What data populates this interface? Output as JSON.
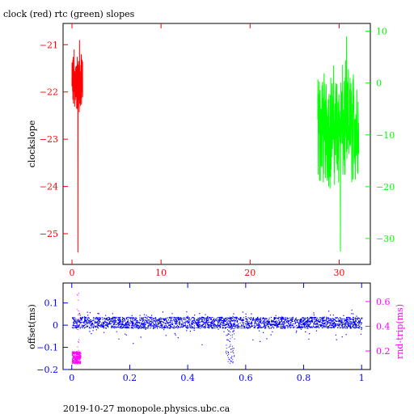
{
  "title": "clock (red) rtc (green) slopes",
  "footer": "2019-10-27  monopole.physics.ubc.ca",
  "colors": {
    "clock": "#ff0000",
    "rtc": "#00ff00",
    "offset": "#0000ff",
    "rndtrip": "#ff00ff",
    "axis": "#000000"
  },
  "chart_data": [
    {
      "type": "line",
      "title": "clock (red) rtc (green) slopes",
      "ylabel": "clockslope",
      "xlim": [
        -1,
        33.5
      ],
      "ylim": [
        -25.65,
        -20.55
      ],
      "y2lim": [
        -35,
        11.5
      ],
      "xticks": [
        0,
        10,
        20,
        30
      ],
      "yticks": [
        -21,
        -22,
        -23,
        -24,
        -25
      ],
      "y2ticks": [
        10,
        0,
        -10,
        -20,
        -30
      ],
      "series": [
        {
          "name": "clock",
          "axis": "left",
          "x_range": [
            0,
            1.2
          ],
          "y_center": -22.0,
          "y_range": [
            -25.4,
            -20.9
          ],
          "points": 120
        },
        {
          "name": "rtc",
          "axis": "right",
          "x_range": [
            27.6,
            32.2
          ],
          "y_center": -8.0,
          "y_range": [
            -32.5,
            9.0
          ],
          "points": 260
        }
      ]
    },
    {
      "type": "scatter",
      "ylabel": "offset(ms)",
      "y2label": "rnd-trip(ms)",
      "xlim": [
        -0.03,
        1.03
      ],
      "ylim": [
        -0.2,
        0.19
      ],
      "y2lim": [
        0.05,
        0.75
      ],
      "xticks": [
        "0",
        "0.2",
        "0.4",
        "0.6",
        "0.8",
        "1"
      ],
      "yticks": [
        "0.1",
        "0",
        "-0.1",
        "-0.2"
      ],
      "y2ticks": [
        "0.6",
        "0.4",
        "0.2"
      ],
      "series": [
        {
          "name": "offset",
          "axis": "left",
          "x_range": [
            0,
            1
          ],
          "y_band": [
            -0.012,
            0.038
          ],
          "dip_x": [
            0.53,
            0.56
          ],
          "dip_y_min": -0.17
        },
        {
          "name": "rnd-trip",
          "axis": "right",
          "x_range": [
            0,
            0.03
          ],
          "y_band": [
            0.1,
            0.2
          ],
          "y_max": 0.7
        }
      ]
    }
  ]
}
